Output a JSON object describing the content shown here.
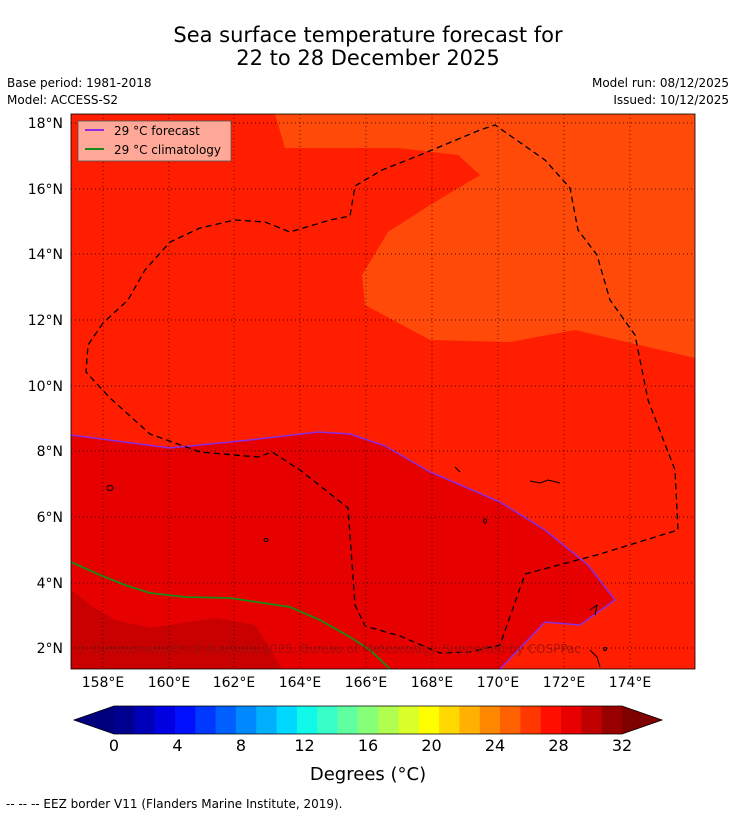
{
  "header": {
    "title_line1": "Sea surface temperature forecast for",
    "title_line2": "22 to 28 December 2025",
    "base_period": "Base period: 1981-2018",
    "model": "Model: ACCESS-S2",
    "model_run": "Model run: 08/12/2025",
    "issued": "Issued: 10/12/2025"
  },
  "map": {
    "lat_labels": [
      "18°N",
      "16°N",
      "14°N",
      "12°N",
      "10°N",
      "8°N",
      "6°N",
      "4°N",
      "2°N"
    ],
    "lon_labels": [
      "158°E",
      "160°E",
      "162°E",
      "164°E",
      "166°E",
      "168°E",
      "170°E",
      "172°E",
      "174°E"
    ],
    "legend": [
      {
        "label": "29 °C  forecast",
        "color": "#8b2be2"
      },
      {
        "label": "29 °C  climatology",
        "color": "#1a8a1a"
      }
    ],
    "copyright": "© Commonwealth of Australia 2025, Bureau of Meteorology. Supported by COSPPac",
    "colors": {
      "warm_orange": "#ff4a0a",
      "red_orange": "#ff1e00",
      "red": "#e60000",
      "dark_red": "#c80000"
    }
  },
  "colorbar": {
    "tick_labels": [
      "0",
      "4",
      "8",
      "12",
      "16",
      "20",
      "24",
      "28",
      "32"
    ],
    "title": "Degrees (°C)",
    "colors": [
      "#00008f",
      "#0000b8",
      "#0000e0",
      "#0010ff",
      "#0038ff",
      "#0060ff",
      "#0088ff",
      "#00b0ff",
      "#00d8ff",
      "#10f8e8",
      "#38ffc8",
      "#60ffa0",
      "#88ff78",
      "#b0ff50",
      "#d8ff28",
      "#ffff00",
      "#ffd800",
      "#ffb000",
      "#ff8800",
      "#ff6000",
      "#ff3800",
      "#ff1000",
      "#e80000",
      "#c00000",
      "#980000"
    ],
    "under_color": "#00007f",
    "over_color": "#800000"
  },
  "footnote": "-- -- -- EEZ border V11 (Flanders Marine Institute, 2019)."
}
